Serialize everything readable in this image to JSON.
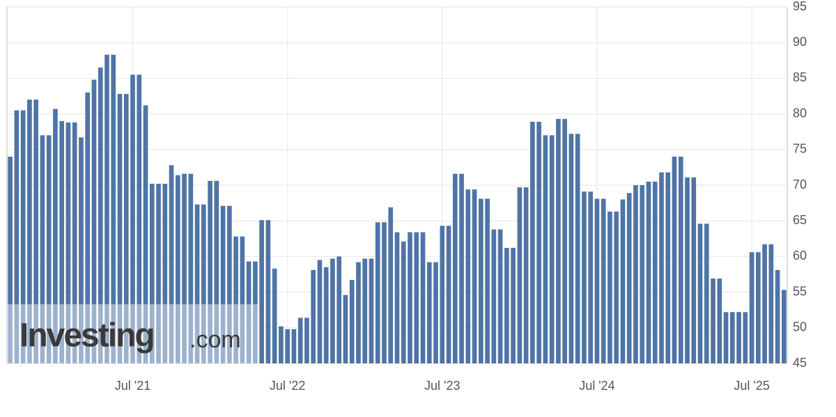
{
  "chart_data": {
    "type": "bar",
    "watermark": {
      "brand": "Investing",
      "suffix": ".com"
    },
    "categories": [
      null,
      null,
      null,
      null,
      null,
      null,
      null,
      null,
      null,
      null,
      null,
      null,
      null,
      null,
      null,
      null,
      null,
      null,
      null,
      "Jul '21",
      null,
      null,
      null,
      null,
      null,
      null,
      null,
      null,
      null,
      null,
      null,
      null,
      null,
      null,
      null,
      null,
      null,
      null,
      null,
      null,
      null,
      null,
      null,
      "Jul '22",
      null,
      null,
      null,
      null,
      null,
      null,
      null,
      null,
      null,
      null,
      null,
      null,
      null,
      null,
      null,
      null,
      null,
      null,
      null,
      null,
      null,
      null,
      null,
      "Jul '23",
      null,
      null,
      null,
      null,
      null,
      null,
      null,
      null,
      null,
      null,
      null,
      null,
      null,
      null,
      null,
      null,
      null,
      null,
      null,
      null,
      null,
      null,
      null,
      "Jul '24",
      null,
      null,
      null,
      null,
      null,
      null,
      null,
      null,
      null,
      null,
      null,
      null,
      null,
      null,
      null,
      null,
      null,
      null,
      null,
      null,
      null,
      null,
      null,
      "Jul '25",
      null,
      null,
      null,
      null,
      null
    ],
    "values": [
      74,
      80.5,
      80.5,
      82,
      82,
      77,
      77,
      80.7,
      79,
      78.8,
      78.8,
      76.7,
      83,
      84.8,
      86.5,
      88.3,
      88.3,
      82.8,
      82.8,
      85.5,
      85.5,
      81.2,
      70.2,
      70.2,
      70.2,
      72.8,
      71.4,
      71.6,
      71.6,
      67.3,
      67.3,
      70.6,
      70.6,
      67.1,
      67.1,
      62.8,
      62.8,
      59.3,
      59.3,
      65.1,
      65.1,
      58.3,
      50.2,
      49.8,
      49.8,
      51.4,
      51.4,
      58.1,
      59.5,
      58.5,
      59.7,
      60,
      54.6,
      56.7,
      59.2,
      59.7,
      59.7,
      64.8,
      64.8,
      66.9,
      63.4,
      62.1,
      63.4,
      63.4,
      63.4,
      59.2,
      59.2,
      64.3,
      64.3,
      71.6,
      71.6,
      69.4,
      69.4,
      68.1,
      68.1,
      63.8,
      63.8,
      61.2,
      61.2,
      69.7,
      69.7,
      78.9,
      78.9,
      77,
      77,
      79.3,
      79.3,
      77.2,
      77.2,
      69.1,
      69.1,
      68.1,
      68.1,
      66.3,
      66.3,
      68,
      68.9,
      70,
      70,
      70.5,
      70.5,
      71.8,
      71.8,
      74,
      74,
      71.1,
      71.1,
      64.6,
      64.6,
      56.9,
      56.9,
      52.2,
      52.2,
      52.2,
      52.2,
      60.6,
      60.6,
      61.7,
      61.7,
      58.1,
      55.3
    ],
    "color": "#4f74a6",
    "ylim": [
      45,
      95
    ],
    "yticks": [
      45,
      50,
      55,
      60,
      65,
      70,
      75,
      80,
      85,
      90,
      95
    ],
    "grid": true
  }
}
